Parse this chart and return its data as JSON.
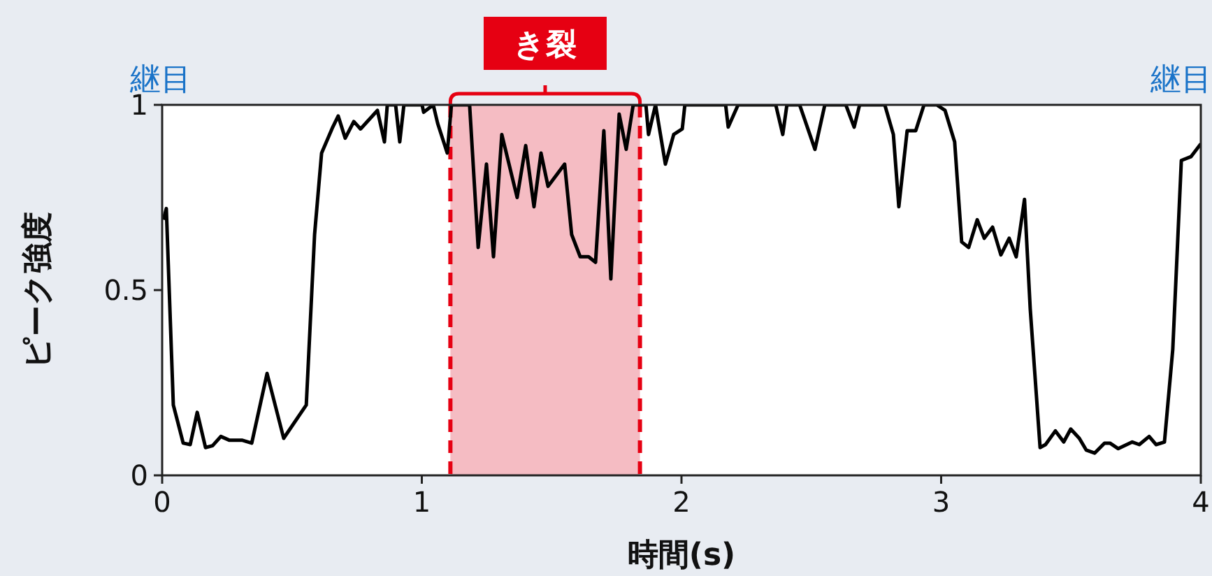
{
  "chart_data": {
    "type": "line",
    "xlabel": "時間(s)",
    "ylabel": "ピーク強度",
    "xlim": [
      0,
      4
    ],
    "xticks": [
      0,
      1,
      2,
      3,
      4
    ],
    "ylim": [
      0,
      1
    ],
    "yticks": [
      0,
      0.5,
      1
    ],
    "grid": false,
    "marker": "none",
    "line_style": "solid",
    "series": [
      {
        "color": "#000000",
        "x": [
          0.005,
          0.016,
          0.043,
          0.081,
          0.108,
          0.135,
          0.167,
          0.194,
          0.226,
          0.258,
          0.307,
          0.345,
          0.404,
          0.468,
          0.555,
          0.587,
          0.614,
          0.657,
          0.678,
          0.705,
          0.738,
          0.764,
          0.829,
          0.856,
          0.867,
          0.899,
          0.915,
          0.931,
          1.001,
          1.007,
          1.044,
          1.061,
          1.098,
          1.114,
          1.184,
          1.217,
          1.249,
          1.276,
          1.308,
          1.367,
          1.4,
          1.432,
          1.459,
          1.486,
          1.55,
          1.577,
          1.61,
          1.642,
          1.669,
          1.701,
          1.728,
          1.76,
          1.787,
          1.814,
          1.863,
          1.873,
          1.9,
          1.938,
          1.97,
          2.003,
          2.013,
          2.17,
          2.18,
          2.218,
          2.288,
          2.363,
          2.39,
          2.406,
          2.455,
          2.514,
          2.552,
          2.633,
          2.665,
          2.686,
          2.767,
          2.783,
          2.816,
          2.837,
          2.869,
          2.902,
          2.934,
          2.983,
          3.015,
          3.052,
          3.079,
          3.106,
          3.139,
          3.166,
          3.198,
          3.23,
          3.262,
          3.289,
          3.321,
          3.343,
          3.381,
          3.402,
          3.44,
          3.472,
          3.499,
          3.532,
          3.559,
          3.591,
          3.629,
          3.65,
          3.682,
          3.736,
          3.763,
          3.801,
          3.828,
          3.86,
          3.892,
          3.925,
          3.962,
          4.0
        ],
        "values": [
          0.69,
          0.72,
          0.19,
          0.087,
          0.083,
          0.17,
          0.075,
          0.08,
          0.105,
          0.095,
          0.095,
          0.087,
          0.275,
          0.1,
          0.19,
          0.65,
          0.87,
          0.94,
          0.97,
          0.91,
          0.955,
          0.935,
          0.985,
          0.9,
          1,
          1,
          0.9,
          1,
          1,
          0.98,
          1,
          0.95,
          0.87,
          1,
          1,
          0.615,
          0.84,
          0.59,
          0.92,
          0.75,
          0.89,
          0.725,
          0.87,
          0.78,
          0.84,
          0.65,
          0.59,
          0.59,
          0.575,
          0.93,
          0.53,
          0.975,
          0.88,
          1,
          1,
          0.92,
          1,
          0.84,
          0.92,
          0.935,
          1,
          1,
          0.94,
          1,
          1,
          1,
          0.92,
          1,
          1,
          0.88,
          1,
          1,
          0.94,
          1,
          1,
          1,
          0.92,
          0.725,
          0.93,
          0.93,
          1,
          1,
          0.985,
          0.9,
          0.63,
          0.615,
          0.69,
          0.64,
          0.67,
          0.595,
          0.64,
          0.59,
          0.745,
          0.45,
          0.075,
          0.083,
          0.12,
          0.09,
          0.125,
          0.1,
          0.068,
          0.06,
          0.087,
          0.087,
          0.072,
          0.09,
          0.083,
          0.105,
          0.083,
          0.09,
          0.34,
          0.85,
          0.86,
          0.895
        ]
      }
    ],
    "bands": [
      {
        "axis": "x",
        "from": 1.11,
        "to": 1.84,
        "label": "き裂",
        "color": "#f5bcc3"
      }
    ],
    "ref_lines": [
      {
        "axis": "x",
        "value": 1.11,
        "color": "#e60012",
        "line_style": "dashed"
      },
      {
        "axis": "x",
        "value": 1.84,
        "color": "#e60012",
        "line_style": "dashed"
      }
    ],
    "annotations": [
      "継目",
      "継目"
    ]
  }
}
